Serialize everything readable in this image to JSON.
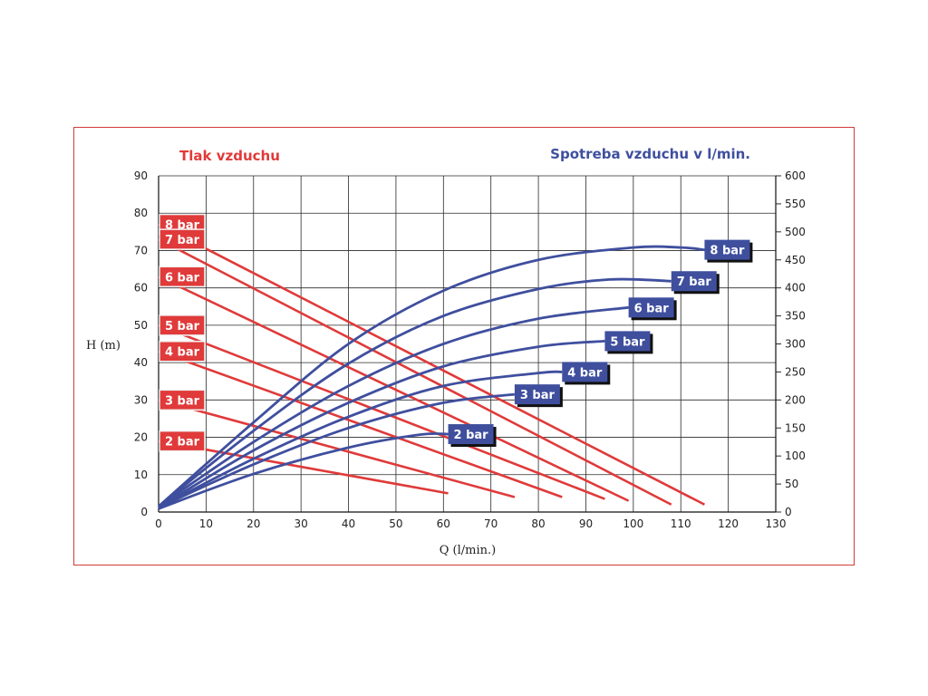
{
  "chart_data": {
    "type": "line",
    "left_heading": "Tlak vzduchu",
    "right_heading": "Spotreba vzduchu v l/min.",
    "xlabel": "Q (l/min.)",
    "ylabel": "H (m)",
    "xlim": [
      0,
      130
    ],
    "ylim": [
      0,
      90
    ],
    "y2lim": [
      0,
      600
    ],
    "grid": true,
    "x_ticks": [
      "0",
      "10",
      "20",
      "30",
      "40",
      "50",
      "60",
      "70",
      "80",
      "90",
      "100",
      "110",
      "120",
      "130"
    ],
    "y_ticks": [
      "0",
      "10",
      "20",
      "30",
      "40",
      "50",
      "60",
      "70",
      "80",
      "90"
    ],
    "y2_ticks": [
      "0",
      "50",
      "100",
      "150",
      "200",
      "250",
      "300",
      "350",
      "400",
      "450",
      "500",
      "550",
      "600"
    ],
    "colors": {
      "head_series": "#e03a3a",
      "air_series": "#3f4f9e",
      "frame": "#d23a3a"
    },
    "head_series": [
      {
        "name": "8 bar",
        "points": [
          [
            0,
            77
          ],
          [
            115,
            2
          ]
        ]
      },
      {
        "name": "7 bar",
        "points": [
          [
            0,
            73
          ],
          [
            108,
            2
          ]
        ]
      },
      {
        "name": "6 bar",
        "points": [
          [
            0,
            63
          ],
          [
            99,
            3
          ]
        ]
      },
      {
        "name": "5 bar",
        "points": [
          [
            0,
            50
          ],
          [
            94,
            3.5
          ]
        ]
      },
      {
        "name": "4 bar",
        "points": [
          [
            0,
            43
          ],
          [
            85,
            4
          ]
        ]
      },
      {
        "name": "3 bar",
        "points": [
          [
            0,
            30
          ],
          [
            75,
            4
          ]
        ]
      },
      {
        "name": "2 bar",
        "points": [
          [
            0,
            19
          ],
          [
            61,
            5
          ]
        ]
      }
    ],
    "air_series": [
      {
        "name": "8 bar",
        "points": [
          [
            0,
            10
          ],
          [
            20,
            160
          ],
          [
            40,
            300
          ],
          [
            60,
            395
          ],
          [
            80,
            450
          ],
          [
            100,
            472
          ],
          [
            110,
            472
          ],
          [
            115,
            468
          ]
        ]
      },
      {
        "name": "7 bar",
        "points": [
          [
            0,
            10
          ],
          [
            20,
            145
          ],
          [
            40,
            265
          ],
          [
            60,
            350
          ],
          [
            80,
            398
          ],
          [
            95,
            415
          ],
          [
            108,
            412
          ]
        ]
      },
      {
        "name": "6 bar",
        "points": [
          [
            0,
            10
          ],
          [
            20,
            125
          ],
          [
            40,
            225
          ],
          [
            60,
            300
          ],
          [
            80,
            345
          ],
          [
            99,
            365
          ]
        ]
      },
      {
        "name": "5 bar",
        "points": [
          [
            0,
            8
          ],
          [
            20,
            110
          ],
          [
            40,
            195
          ],
          [
            60,
            260
          ],
          [
            80,
            295
          ],
          [
            94,
            305
          ]
        ]
      },
      {
        "name": "4 bar",
        "points": [
          [
            0,
            8
          ],
          [
            20,
            95
          ],
          [
            40,
            170
          ],
          [
            60,
            225
          ],
          [
            80,
            248
          ],
          [
            85,
            250
          ]
        ]
      },
      {
        "name": "3 bar",
        "points": [
          [
            0,
            8
          ],
          [
            20,
            85
          ],
          [
            40,
            150
          ],
          [
            60,
            195
          ],
          [
            75,
            210
          ]
        ]
      },
      {
        "name": "2 bar",
        "points": [
          [
            0,
            6
          ],
          [
            20,
            68
          ],
          [
            40,
            115
          ],
          [
            55,
            138
          ],
          [
            61,
            139
          ]
        ]
      }
    ]
  }
}
